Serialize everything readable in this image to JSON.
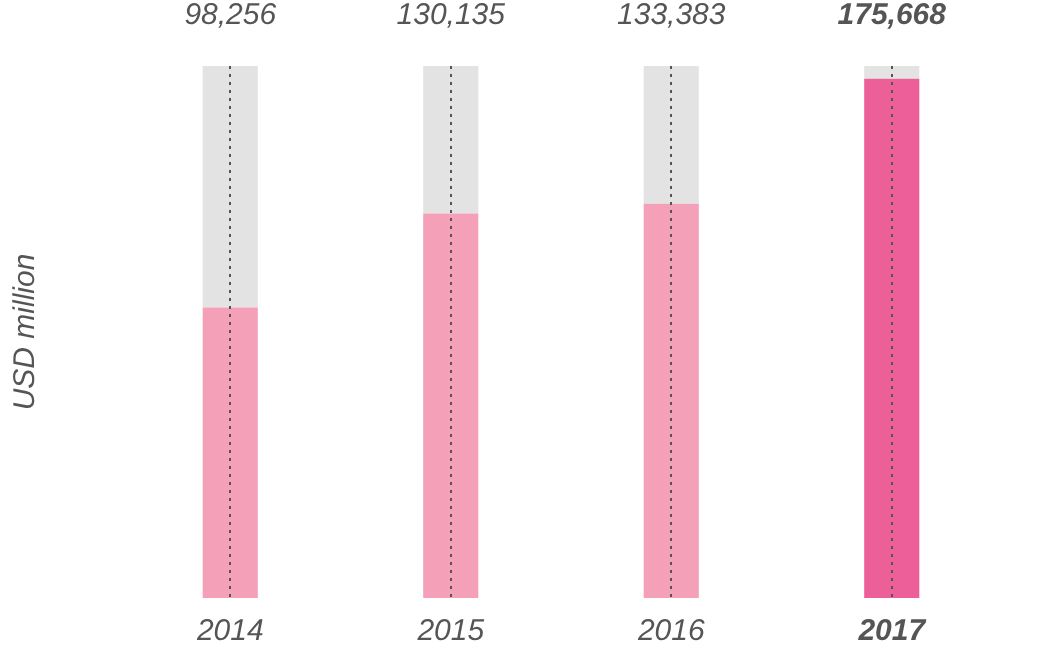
{
  "chart_data": {
    "type": "bar",
    "ylabel": "USD million",
    "categories": [
      "2014",
      "2015",
      "2016",
      "2017"
    ],
    "stacked": true,
    "series": [
      {
        "colors": [
          "#f4a0b8",
          "#f4a0b8",
          "#f4a0b8",
          "#ec5f99"
        ],
        "values": [
          98256,
          130135,
          133383,
          175668
        ],
        "value_labels": [
          "98,256",
          "130,135",
          "133,383",
          "175,668"
        ]
      },
      {
        "color": "#e3e3e3",
        "values": [
          81744,
          49865,
          46617,
          4332
        ]
      }
    ],
    "tick_labels": "x",
    "grid": "x",
    "legend": false
  }
}
